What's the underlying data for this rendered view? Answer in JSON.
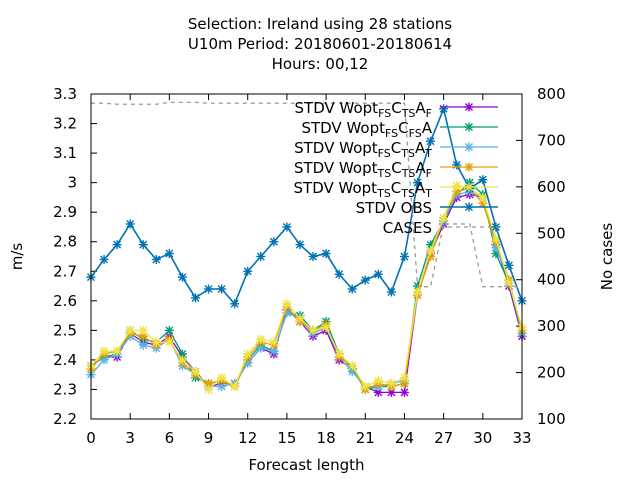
{
  "chart_data": {
    "type": "line",
    "title_lines": [
      "Selection: Ireland using    28 stations",
      "U10m   Period: 20180601-20180614",
      "Hours:  00,12"
    ],
    "xlabel": "Forecast length",
    "ylabel": "m/s",
    "y2label": "No cases",
    "xlim": [
      0,
      33
    ],
    "ylim": [
      2.2,
      3.3
    ],
    "y2lim": [
      100,
      800
    ],
    "xticks": [
      0,
      3,
      6,
      9,
      12,
      15,
      18,
      21,
      24,
      27,
      30,
      33
    ],
    "yticks": [
      2.2,
      2.3,
      2.4,
      2.5,
      2.6,
      2.7,
      2.8,
      2.9,
      3,
      3.1,
      3.2,
      3.3
    ],
    "y2ticks": [
      100,
      200,
      300,
      400,
      500,
      600,
      700,
      800
    ],
    "legend_position": "top-right",
    "x": [
      0,
      1,
      2,
      3,
      4,
      5,
      6,
      7,
      8,
      9,
      10,
      11,
      12,
      13,
      14,
      15,
      16,
      17,
      18,
      19,
      20,
      21,
      22,
      23,
      24,
      25,
      26,
      27,
      28,
      29,
      30,
      31,
      32,
      33
    ],
    "series": [
      {
        "name_parts": [
          [
            "STDV Wopt",
            ""
          ],
          [
            "FS",
            "sub"
          ],
          [
            "C",
            ""
          ],
          [
            "T",
            "sub"
          ],
          [
            "S",
            "sub"
          ],
          [
            "A",
            ""
          ],
          [
            "F",
            "sub"
          ]
        ],
        "color": "#9400d3",
        "marker": "x",
        "axis": "y1",
        "values": [
          2.38,
          2.41,
          2.41,
          2.49,
          2.46,
          2.45,
          2.48,
          2.41,
          2.36,
          2.31,
          2.32,
          2.32,
          2.39,
          2.44,
          2.42,
          2.57,
          2.53,
          2.48,
          2.5,
          2.4,
          2.37,
          2.31,
          2.29,
          2.29,
          2.29,
          2.62,
          2.76,
          2.86,
          2.95,
          2.96,
          2.95,
          2.79,
          2.65,
          2.48
        ]
      },
      {
        "name_parts": [
          [
            "STDV Wopt",
            ""
          ],
          [
            "FS",
            "sub"
          ],
          [
            "C",
            ""
          ],
          [
            "FS",
            "sub"
          ],
          [
            "A",
            ""
          ],
          [
            "",
            ""
          ]
        ],
        "color": "#009e73",
        "marker": "x",
        "axis": "y1",
        "values": [
          2.38,
          2.41,
          2.42,
          2.5,
          2.47,
          2.46,
          2.5,
          2.42,
          2.34,
          2.32,
          2.33,
          2.31,
          2.4,
          2.45,
          2.43,
          2.56,
          2.55,
          2.5,
          2.53,
          2.42,
          2.37,
          2.3,
          2.31,
          2.31,
          2.32,
          2.65,
          2.79,
          2.87,
          2.96,
          3.0,
          2.96,
          2.76,
          2.66,
          2.49
        ]
      },
      {
        "name_parts": [
          [
            "STDV Wopt",
            ""
          ],
          [
            "FS",
            "sub"
          ],
          [
            "C",
            ""
          ],
          [
            "T",
            "sub"
          ],
          [
            "S",
            "sub"
          ],
          [
            "A",
            ""
          ],
          [
            "T",
            "sub"
          ]
        ],
        "color": "#56b4e9",
        "marker": "x",
        "axis": "y1",
        "values": [
          2.35,
          2.4,
          2.42,
          2.48,
          2.45,
          2.44,
          2.47,
          2.38,
          2.35,
          2.31,
          2.31,
          2.32,
          2.39,
          2.44,
          2.43,
          2.56,
          2.54,
          2.49,
          2.51,
          2.41,
          2.36,
          2.31,
          2.31,
          2.32,
          2.33,
          2.63,
          2.77,
          2.87,
          2.96,
          2.97,
          2.95,
          2.78,
          2.67,
          2.49
        ]
      },
      {
        "name_parts": [
          [
            "STDV Wopt",
            ""
          ],
          [
            "T",
            "sub"
          ],
          [
            "S",
            "sub"
          ],
          [
            "C",
            ""
          ],
          [
            "T",
            "sub"
          ],
          [
            "S",
            "sub"
          ],
          [
            "A",
            ""
          ],
          [
            "F",
            "sub"
          ]
        ],
        "color": "#e69f00",
        "marker": "x",
        "axis": "y1",
        "values": [
          2.37,
          2.42,
          2.43,
          2.49,
          2.48,
          2.45,
          2.47,
          2.39,
          2.35,
          2.32,
          2.33,
          2.31,
          2.41,
          2.46,
          2.45,
          2.58,
          2.53,
          2.5,
          2.52,
          2.41,
          2.38,
          2.3,
          2.32,
          2.31,
          2.32,
          2.62,
          2.75,
          2.88,
          2.97,
          2.98,
          2.93,
          2.8,
          2.67,
          2.5
        ]
      },
      {
        "name_parts": [
          [
            "STDV Wopt",
            ""
          ],
          [
            "T",
            "sub"
          ],
          [
            "S",
            "sub"
          ],
          [
            "C",
            ""
          ],
          [
            "T",
            "sub"
          ],
          [
            "S",
            "sub"
          ],
          [
            "A",
            ""
          ],
          [
            "T",
            "sub"
          ]
        ],
        "color": "#f0e442",
        "marker": "x",
        "axis": "y1",
        "values": [
          2.38,
          2.43,
          2.43,
          2.5,
          2.5,
          2.46,
          2.46,
          2.4,
          2.36,
          2.3,
          2.34,
          2.31,
          2.42,
          2.47,
          2.46,
          2.59,
          2.54,
          2.5,
          2.51,
          2.42,
          2.38,
          2.31,
          2.33,
          2.32,
          2.34,
          2.63,
          2.77,
          2.88,
          2.99,
          2.98,
          2.95,
          2.81,
          2.66,
          2.51
        ]
      },
      {
        "name_parts": [
          [
            "STDV OBS",
            ""
          ]
        ],
        "color": "#0072b2",
        "marker": "x",
        "axis": "y1",
        "width": 1.6,
        "values": [
          2.68,
          2.74,
          2.79,
          2.86,
          2.79,
          2.74,
          2.76,
          2.68,
          2.61,
          2.64,
          2.64,
          2.59,
          2.7,
          2.75,
          2.8,
          2.85,
          2.79,
          2.75,
          2.76,
          2.69,
          2.64,
          2.67,
          2.69,
          2.63,
          2.75,
          3.0,
          3.14,
          3.25,
          3.06,
          2.98,
          3.01,
          2.85,
          2.72,
          2.6
        ]
      },
      {
        "name_parts": [
          [
            "CASES",
            ""
          ]
        ],
        "color": "#999999",
        "marker": "none",
        "dash": "4,4",
        "axis": "y2",
        "values": [
          780,
          780,
          778,
          778,
          778,
          778,
          782,
          782,
          782,
          780,
          780,
          780,
          780,
          780,
          780,
          780,
          780,
          780,
          780,
          780,
          780,
          780,
          780,
          780,
          780,
          385,
          385,
          520,
          520,
          520,
          385,
          385,
          385,
          385
        ]
      }
    ]
  }
}
